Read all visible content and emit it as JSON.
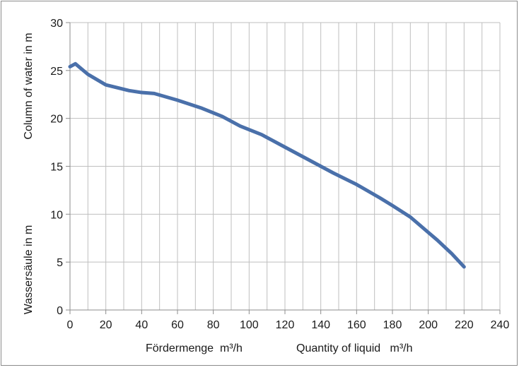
{
  "chart_data": {
    "type": "line",
    "xlim": [
      0,
      240
    ],
    "ylim": [
      0,
      30
    ],
    "x_ticks": [
      0,
      20,
      40,
      60,
      80,
      100,
      120,
      140,
      160,
      180,
      200,
      220,
      240
    ],
    "y_ticks": [
      0,
      5,
      10,
      15,
      20,
      25,
      30
    ],
    "grid": true,
    "ylabel_upper": "Column of water in m",
    "ylabel_lower": "Wassersäule in m",
    "xlabel_de": "Fördermenge  m³/h",
    "xlabel_en": "Quantity of liquid   m³/h",
    "line_color": "#4a70aa",
    "series": [
      {
        "x": [
          0,
          3,
          10,
          20,
          33,
          40,
          47,
          60,
          73,
          85,
          95,
          107,
          120,
          133,
          147,
          160,
          173,
          180,
          190,
          200,
          205,
          213,
          220
        ],
        "y": [
          25.4,
          25.7,
          24.6,
          23.5,
          22.9,
          22.7,
          22.6,
          21.9,
          21.1,
          20.2,
          19.2,
          18.3,
          17.0,
          15.7,
          14.3,
          13.1,
          11.7,
          10.9,
          9.7,
          8.1,
          7.3,
          5.9,
          4.5
        ]
      }
    ]
  }
}
